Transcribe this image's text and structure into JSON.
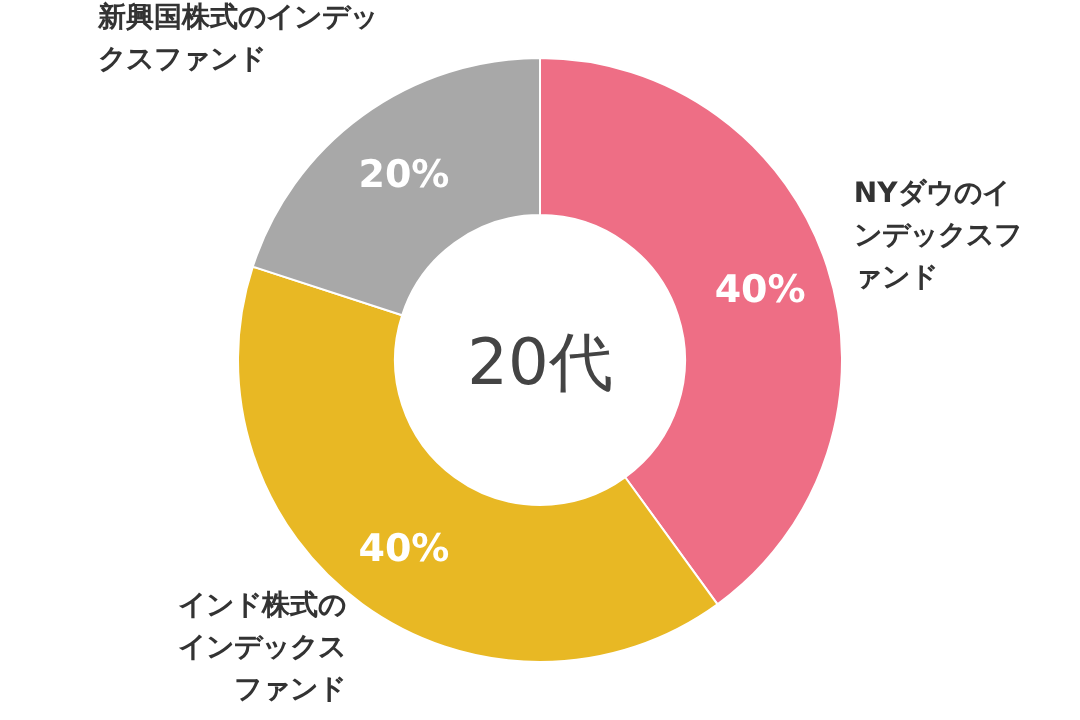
{
  "chart_data": {
    "type": "donut",
    "title": "20代",
    "categories": [
      "NYダウのインデックスファンド",
      "インド株式のインデックスファンド",
      "新興国株式のインデックスファンド"
    ],
    "values": [
      40,
      40,
      20
    ],
    "colors": [
      "#ee6e85",
      "#e8b824",
      "#a8a8a8"
    ],
    "value_labels": [
      "40%",
      "40%",
      "20%"
    ]
  }
}
